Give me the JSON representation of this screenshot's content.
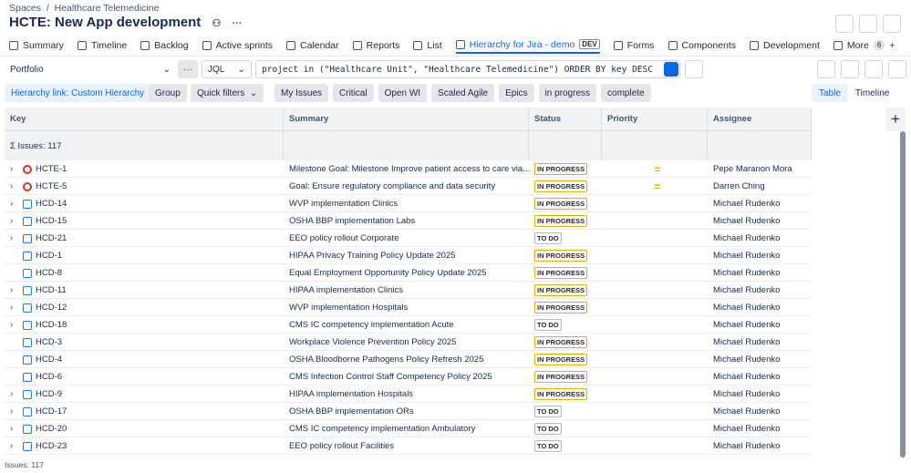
{
  "breadcrumbs": [
    "Spaces",
    "Healthcare Telemedicine"
  ],
  "header": {
    "title": "HCTE: New App development"
  },
  "tabs": {
    "items": [
      "Summary",
      "Timeline",
      "Backlog",
      "Active sprints",
      "Calendar",
      "Reports",
      "List",
      "Hierarchy for Jira - demo",
      "Forms",
      "Components",
      "Development",
      "More"
    ],
    "active": 7,
    "badge": "DEV",
    "more_count": "6"
  },
  "toolbar": {
    "portfolio": "Portfolio",
    "mode": "JQL",
    "query": "project in (\"Healthcare Unit\", \"Healthcare Telemedicine\") ORDER BY key DESC"
  },
  "filters": {
    "hierarchy_link": "Hierarchy link: Custom Hierarchy",
    "group": "Group",
    "quick_filters": "Quick filters",
    "chips": [
      "My Issues",
      "Critical",
      "Open WI",
      "Scaled Agile",
      "Epics",
      "in progress",
      "complete"
    ]
  },
  "views": {
    "items": [
      "Table",
      "Timeline"
    ],
    "active": 0
  },
  "table": {
    "columns": [
      "Key",
      "Summary",
      "Status",
      "Priority",
      "Assignee"
    ],
    "summary_row": "Σ Issues: 117",
    "rows": [
      {
        "key": "HCTE-1",
        "summary": "Milestone Goal: Milestone Improve patient access to care via...",
        "status": "IN PROGRESS",
        "assignee": "Pepe Maranon Mora",
        "expandable": true,
        "icon": "goal",
        "priority": "medium"
      },
      {
        "key": "HCTE-5",
        "summary": "Goal: Ensure regulatory compliance and data security",
        "status": "IN PROGRESS",
        "assignee": "Darren Ching",
        "expandable": true,
        "icon": "goal",
        "priority": "medium"
      },
      {
        "key": "HCD-14",
        "summary": "WVP implementation Clinics",
        "status": "IN PROGRESS",
        "assignee": "Michael Rudenko",
        "expandable": true,
        "icon": "task",
        "priority": null
      },
      {
        "key": "HCD-15",
        "summary": "OSHA BBP implementation Labs",
        "status": "IN PROGRESS",
        "assignee": "Michael Rudenko",
        "expandable": true,
        "icon": "task",
        "priority": null
      },
      {
        "key": "HCD-21",
        "summary": "EEO policy rollout Corporate",
        "status": "TO DO",
        "assignee": "Michael Rudenko",
        "expandable": true,
        "icon": "task",
        "priority": null
      },
      {
        "key": "HCD-1",
        "summary": "HIPAA Privacy Training Policy Update 2025",
        "status": "IN PROGRESS",
        "assignee": "Michael Rudenko",
        "expandable": false,
        "icon": "task",
        "priority": null
      },
      {
        "key": "HCD-8",
        "summary": "Equal Employment Opportunity Policy Update 2025",
        "status": "IN PROGRESS",
        "assignee": "Michael Rudenko",
        "expandable": false,
        "icon": "task",
        "priority": null
      },
      {
        "key": "HCD-11",
        "summary": "HIPAA implementation Clinics",
        "status": "IN PROGRESS",
        "assignee": "Michael Rudenko",
        "expandable": true,
        "icon": "task",
        "priority": null
      },
      {
        "key": "HCD-12",
        "summary": "WVP implementation Hospitals",
        "status": "IN PROGRESS",
        "assignee": "Michael Rudenko",
        "expandable": true,
        "icon": "task",
        "priority": null
      },
      {
        "key": "HCD-18",
        "summary": "CMS IC competency implementation Acute",
        "status": "TO DO",
        "assignee": "Michael Rudenko",
        "expandable": true,
        "icon": "task",
        "priority": null
      },
      {
        "key": "HCD-3",
        "summary": "Workplace Violence Prevention Policy 2025",
        "status": "IN PROGRESS",
        "assignee": "Michael Rudenko",
        "expandable": false,
        "icon": "task",
        "priority": null
      },
      {
        "key": "HCD-4",
        "summary": "OSHA Bloodborne Pathogens Policy Refresh 2025",
        "status": "IN PROGRESS",
        "assignee": "Michael Rudenko",
        "expandable": false,
        "icon": "task",
        "priority": null
      },
      {
        "key": "HCD-6",
        "summary": "CMS Infection Control Staff Competency Policy 2025",
        "status": "IN PROGRESS",
        "assignee": "Michael Rudenko",
        "expandable": false,
        "icon": "task",
        "priority": null
      },
      {
        "key": "HCD-9",
        "summary": "HIPAA implementation Hospitals",
        "status": "IN PROGRESS",
        "assignee": "Michael Rudenko",
        "expandable": true,
        "icon": "task",
        "priority": null
      },
      {
        "key": "HCD-17",
        "summary": "OSHA BBP implementation ORs",
        "status": "TO DO",
        "assignee": "Michael Rudenko",
        "expandable": true,
        "icon": "task",
        "priority": null
      },
      {
        "key": "HCD-20",
        "summary": "CMS IC competency implementation Ambulatory",
        "status": "TO DO",
        "assignee": "Michael Rudenko",
        "expandable": true,
        "icon": "task",
        "priority": null
      },
      {
        "key": "HCD-23",
        "summary": "EEO policy rollout Facilities",
        "status": "TO DO",
        "assignee": "Michael Rudenko",
        "expandable": true,
        "icon": "task",
        "priority": null
      }
    ]
  },
  "footer": "Issues: 117"
}
